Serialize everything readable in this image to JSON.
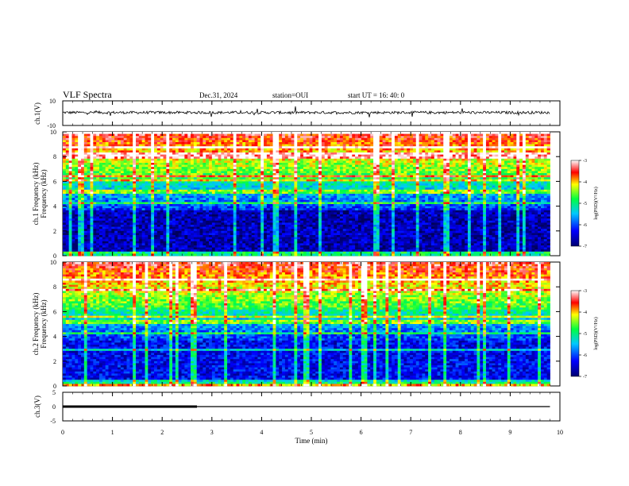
{
  "header": {
    "title": "VLF Spectra",
    "date": "Dec.31, 2024",
    "station": "station=OUI",
    "start": "start  UT  =   16: 40: 0"
  },
  "chart_data": [
    {
      "type": "line",
      "name": "ch1-waveform",
      "ylabel": "ch.1(V)",
      "ylim": [
        -10,
        10
      ],
      "yticks": [
        "10",
        "-10"
      ],
      "xlim": [
        0,
        10
      ],
      "description_level": 0.5
    },
    {
      "type": "heatmap",
      "name": "ch1-spectrogram",
      "ylabel": "ch.1\nFrequency (kHz)",
      "ylim": [
        0,
        10
      ],
      "yticks": [
        "0",
        "2",
        "4",
        "6",
        "8",
        "10"
      ],
      "xlim": [
        0,
        10
      ],
      "data_extent_min": 9.8,
      "colorbar": {
        "label": "log(PSD)(V²/Hz)",
        "range": [
          -7,
          -3
        ],
        "ticks": [
          "-3",
          "-4",
          "-5",
          "-6",
          "-7"
        ]
      }
    },
    {
      "type": "heatmap",
      "name": "ch2-spectrogram",
      "ylabel": "ch.2\nFrequency (kHz)",
      "ylim": [
        0,
        10
      ],
      "yticks": [
        "0",
        "2",
        "4",
        "6",
        "8",
        "10"
      ],
      "xlim": [
        0,
        10
      ],
      "data_extent_min": 9.8,
      "colorbar": {
        "label": "log(PSD)(V²/Hz)",
        "range": [
          -7,
          -3
        ],
        "ticks": [
          "-3",
          "-4",
          "-5",
          "-6",
          "-7"
        ]
      }
    },
    {
      "type": "line",
      "name": "ch3-signal",
      "ylabel": "ch.3(V)",
      "ylim": [
        -5,
        5
      ],
      "yticks": [
        "5",
        "0",
        "-5"
      ],
      "xlim": [
        0,
        10
      ],
      "segments": [
        {
          "x": [
            0,
            2.7
          ],
          "y": [
            0,
            0
          ],
          "weight": "bold"
        },
        {
          "x": [
            2.7,
            9.8
          ],
          "y": [
            0,
            0
          ],
          "weight": "normal"
        }
      ]
    }
  ],
  "xaxis": {
    "label": "Time  (min)",
    "ticks": [
      "0",
      "1",
      "2",
      "3",
      "4",
      "5",
      "6",
      "7",
      "8",
      "9",
      "10"
    ],
    "range": [
      0,
      10
    ]
  },
  "colors": {
    "colormap": [
      "#000080",
      "#0000ff",
      "#00ffff",
      "#00ff00",
      "#ffff00",
      "#ff0000",
      "#ffffff"
    ]
  }
}
